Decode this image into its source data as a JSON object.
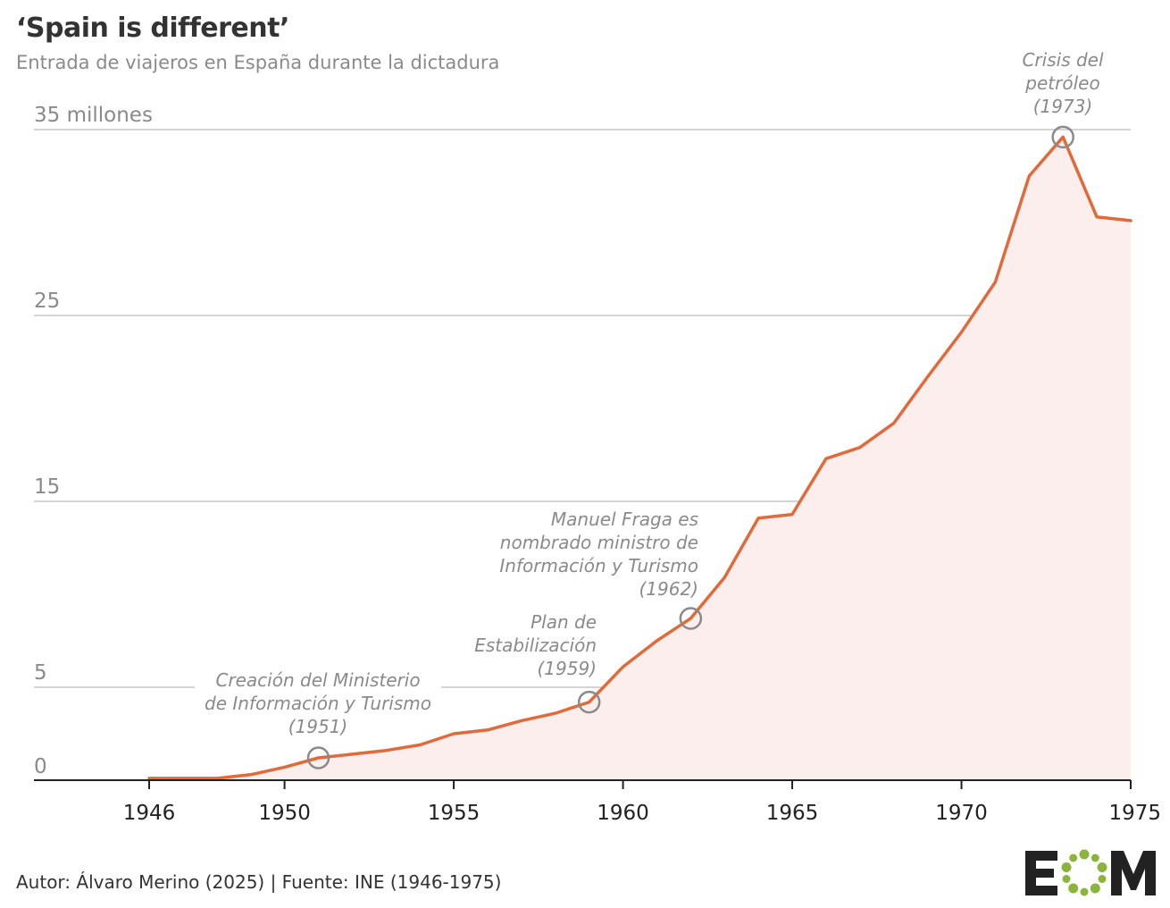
{
  "title": "‘Spain is different’",
  "subtitle": "Entrada de viajeros en España durante la dictadura",
  "footer": {
    "source": "Autor: Álvaro Merino (2025) | Fuente: INE (1946-1975)",
    "logo_text": "EOM"
  },
  "colors": {
    "line": "#e06a3a",
    "area": "#fdeeee",
    "grid": "#bbbbbb",
    "annotation": "#8a8a8a",
    "logo_dark": "#222222",
    "logo_green": "#8bb43a"
  },
  "chart_data": {
    "type": "area",
    "title": "‘Spain is different’",
    "subtitle": "Entrada de viajeros en España durante la dictadura",
    "xlabel": "",
    "ylabel": "",
    "xlim": [
      1942.5,
      1975
    ],
    "ylim": [
      0,
      35
    ],
    "y_unit_label": "millones",
    "y_ticks": [
      {
        "value": 0,
        "label": "0"
      },
      {
        "value": 5,
        "label": "5"
      },
      {
        "value": 15,
        "label": "15"
      },
      {
        "value": 25,
        "label": "25"
      },
      {
        "value": 35,
        "label": "35 millones"
      }
    ],
    "x_ticks": [
      {
        "value": 1946,
        "label": "1946"
      },
      {
        "value": 1950,
        "label": "1950"
      },
      {
        "value": 1955,
        "label": "1955"
      },
      {
        "value": 1960,
        "label": "1960"
      },
      {
        "value": 1965,
        "label": "1965"
      },
      {
        "value": 1970,
        "label": "1970"
      },
      {
        "value": 1975,
        "label": "1975"
      }
    ],
    "grid": true,
    "series": [
      {
        "x": [
          1946,
          1947,
          1948,
          1949,
          1950,
          1951,
          1952,
          1953,
          1954,
          1955,
          1956,
          1957,
          1958,
          1959,
          1960,
          1961,
          1962,
          1963,
          1964,
          1965,
          1966,
          1967,
          1968,
          1969,
          1970,
          1971,
          1972,
          1973,
          1974,
          1975
        ],
        "values": [
          0.1,
          0.1,
          0.1,
          0.3,
          0.7,
          1.2,
          1.4,
          1.6,
          1.9,
          2.5,
          2.7,
          3.2,
          3.6,
          4.2,
          6.1,
          7.5,
          8.7,
          10.9,
          14.1,
          14.3,
          17.3,
          17.9,
          19.2,
          21.7,
          24.1,
          26.8,
          32.5,
          34.6,
          30.3,
          30.1
        ]
      }
    ],
    "annotations": [
      {
        "x": 1951,
        "y": 1.2,
        "lines": [
          "Creación del Ministerio",
          "de Información y Turismo",
          "(1951)"
        ]
      },
      {
        "x": 1959,
        "y": 4.2,
        "lines": [
          "Plan de",
          "Estabilización",
          "(1959)"
        ]
      },
      {
        "x": 1962,
        "y": 8.7,
        "lines": [
          "Manuel Fraga es",
          "nombrado ministro de",
          "Información y Turismo",
          "(1962)"
        ]
      },
      {
        "x": 1973,
        "y": 34.6,
        "lines": [
          "Crisis del",
          "petróleo",
          "(1973)"
        ]
      }
    ]
  }
}
